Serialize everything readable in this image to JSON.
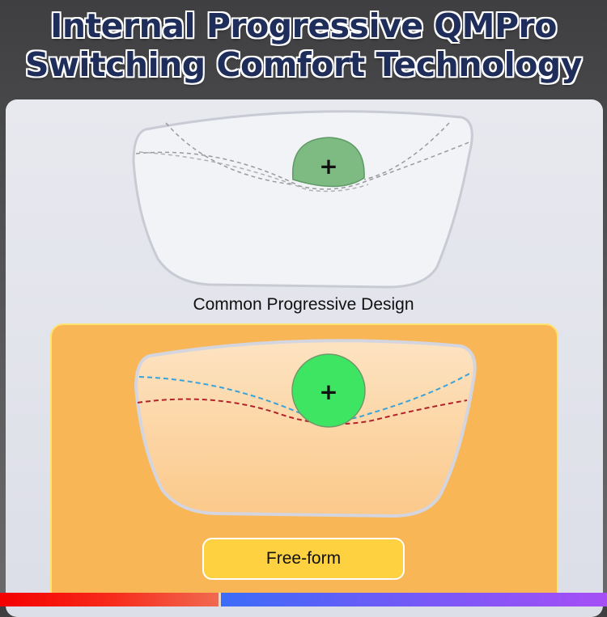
{
  "title": {
    "line1": "Internal Progressive QMPro",
    "line2": "Switching Comfort Technology"
  },
  "common_design": {
    "label": "Common Progressive Design",
    "center_mark": "+"
  },
  "free_form": {
    "button_label": "Free-form",
    "center_mark": "+"
  },
  "colors": {
    "title": "#1f2d5a",
    "card": "#f8b656",
    "button": "#fdd13f",
    "zone_common": "#7dbb83",
    "zone_freeform": "#3ee562",
    "curve_blue": "#3aa2d8",
    "curve_red": "#b3222a"
  }
}
